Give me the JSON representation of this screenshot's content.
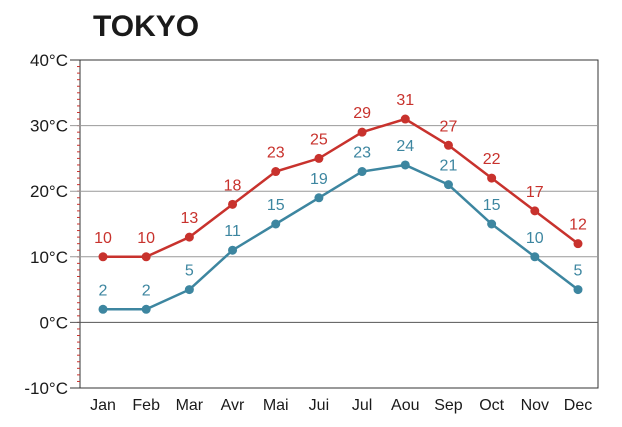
{
  "chart_data": {
    "type": "line",
    "title": "TOKYO",
    "categories": [
      "Jan",
      "Feb",
      "Mar",
      "Avr",
      "Mai",
      "Jui",
      "Jul",
      "Aou",
      "Sep",
      "Oct",
      "Nov",
      "Dec"
    ],
    "series": [
      {
        "color": "#c8322d",
        "values": [
          10,
          10,
          13,
          18,
          23,
          25,
          29,
          31,
          27,
          22,
          17,
          12
        ]
      },
      {
        "color": "#3d86a0",
        "values": [
          2,
          2,
          5,
          11,
          15,
          19,
          23,
          24,
          21,
          15,
          10,
          5
        ]
      }
    ],
    "yticks": [
      "-10°C",
      "0°C",
      "10°C",
      "20°C",
      "30°C",
      "40°C"
    ],
    "ytick_values": [
      -10,
      0,
      10,
      20,
      30,
      40
    ],
    "ylim": [
      -10,
      40
    ],
    "grid": true,
    "colors": {
      "grid": "#999999",
      "axis": "#333333",
      "left_ticks": "#c8322d"
    }
  }
}
